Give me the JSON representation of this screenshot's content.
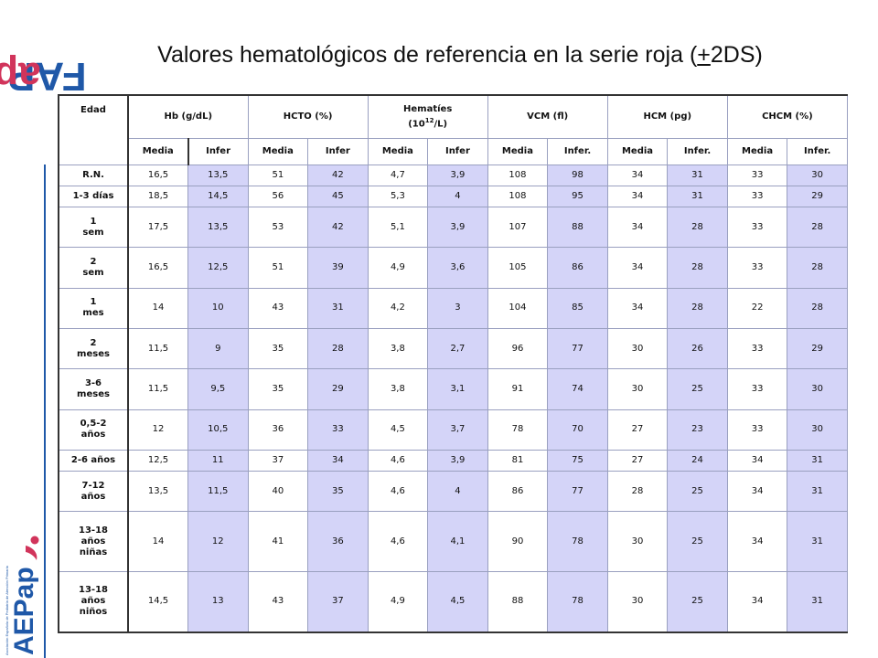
{
  "brand": {
    "fap_a": "FAP",
    "fap_b": "ap",
    "aep_text": "AEPap",
    "aep_caption": "Asociación Española de Pediatría de Atención Primaria",
    "colors": {
      "blue": "#1f58a8",
      "pink": "#d1345b",
      "lavender": "#d4d4f8"
    }
  },
  "title": {
    "before": "Valores hematológicos de referencia en la serie roja (",
    "underlined": "+",
    "after": "2DS)"
  },
  "table": {
    "age_header": "Edad",
    "groups": [
      {
        "label": "Hb (g/dL)"
      },
      {
        "label": "HCTO (%)"
      },
      {
        "label": "Hematíes",
        "label2": "(10",
        "sup": "12",
        "label3": "/L)"
      },
      {
        "label": "VCM (fl)"
      },
      {
        "label": "HCM (pg)"
      },
      {
        "label": "CHCM (%)"
      }
    ],
    "sub": [
      "Media",
      "Infer",
      "Media",
      "Infer",
      "Media",
      "Infer",
      "Media",
      "Infer.",
      "Media",
      "Infer.",
      "Media",
      "Infer."
    ],
    "rows": [
      {
        "age": [
          "R.N."
        ],
        "values": [
          "16,5",
          "13,5",
          "51",
          "42",
          "4,7",
          "3,9",
          "108",
          "98",
          "34",
          "31",
          "33",
          "30"
        ]
      },
      {
        "age": [
          "1-3 días"
        ],
        "values": [
          "18,5",
          "14,5",
          "56",
          "45",
          "5,3",
          "4",
          "108",
          "95",
          "34",
          "31",
          "33",
          "29"
        ]
      },
      {
        "age": [
          "1",
          "sem"
        ],
        "values": [
          "17,5",
          "13,5",
          "53",
          "42",
          "5,1",
          "3,9",
          "107",
          "88",
          "34",
          "28",
          "33",
          "28"
        ]
      },
      {
        "age": [
          "2",
          "sem"
        ],
        "values": [
          "16,5",
          "12,5",
          "51",
          "39",
          "4,9",
          "3,6",
          "105",
          "86",
          "34",
          "28",
          "33",
          "28"
        ]
      },
      {
        "age": [
          "1",
          "mes"
        ],
        "values": [
          "14",
          "10",
          "43",
          "31",
          "4,2",
          "3",
          "104",
          "85",
          "34",
          "28",
          "22",
          "28"
        ]
      },
      {
        "age": [
          "2",
          "meses"
        ],
        "values": [
          "11,5",
          "9",
          "35",
          "28",
          "3,8",
          "2,7",
          "96",
          "77",
          "30",
          "26",
          "33",
          "29"
        ]
      },
      {
        "age": [
          "3-6",
          "meses"
        ],
        "values": [
          "11,5",
          "9,5",
          "35",
          "29",
          "3,8",
          "3,1",
          "91",
          "74",
          "30",
          "25",
          "33",
          "30"
        ]
      },
      {
        "age": [
          "0,5-2",
          "años"
        ],
        "values": [
          "12",
          "10,5",
          "36",
          "33",
          "4,5",
          "3,7",
          "78",
          "70",
          "27",
          "23",
          "33",
          "30"
        ]
      },
      {
        "age": [
          "2-6 años"
        ],
        "values": [
          "12,5",
          "11",
          "37",
          "34",
          "4,6",
          "3,9",
          "81",
          "75",
          "27",
          "24",
          "34",
          "31"
        ]
      },
      {
        "age": [
          "7-12",
          "años"
        ],
        "values": [
          "13,5",
          "11,5",
          "40",
          "35",
          "4,6",
          "4",
          "86",
          "77",
          "28",
          "25",
          "34",
          "31"
        ]
      },
      {
        "age": [
          "13-18",
          "años",
          "niñas"
        ],
        "values": [
          "14",
          "12",
          "41",
          "36",
          "4,6",
          "4,1",
          "90",
          "78",
          "30",
          "25",
          "34",
          "31"
        ]
      },
      {
        "age": [
          "13-18",
          "años",
          "niños"
        ],
        "values": [
          "14,5",
          "13",
          "43",
          "37",
          "4,9",
          "4,5",
          "88",
          "78",
          "30",
          "25",
          "34",
          "31"
        ]
      }
    ]
  }
}
